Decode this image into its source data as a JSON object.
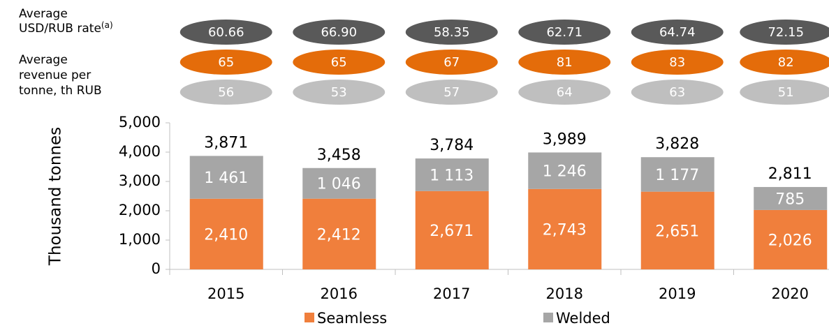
{
  "chart_data": {
    "type": "stacked_bar",
    "categories": [
      "2015",
      "2016",
      "2017",
      "2018",
      "2019",
      "2020"
    ],
    "series": [
      {
        "name": "Seamless",
        "color": "#f07f3c",
        "values": [
          2410,
          2412,
          2671,
          2743,
          2651,
          2026
        ],
        "value_labels": [
          "2,410",
          "2,412",
          "2,671",
          "2,743",
          "2,651",
          "2,026"
        ]
      },
      {
        "name": "Welded",
        "color": "#a6a6a6",
        "values": [
          1461,
          1046,
          1113,
          1246,
          1177,
          785
        ],
        "value_labels": [
          "1 461",
          "1 046",
          "1 113",
          "1 246",
          "1 177",
          "785"
        ]
      }
    ],
    "totals": {
      "values": [
        3871,
        3458,
        3784,
        3989,
        3828,
        2811
      ],
      "value_labels": [
        "3,871",
        "3,458",
        "3,784",
        "3,989",
        "3,828",
        "2,811"
      ]
    },
    "ylabel": "Thousand tonnes",
    "ylim": [
      0,
      5000
    ],
    "yticks": [
      0,
      {
        "value": 1000,
        "label": "1,000"
      },
      {
        "value": 2000,
        "label": "2,000"
      },
      {
        "value": 3000,
        "label": "3,000"
      },
      {
        "value": 4000,
        "label": "4,000"
      },
      {
        "value": 5000,
        "label": "5,000"
      }
    ],
    "rate_row": {
      "label_lines": [
        "Average",
        "USD/RUB rate"
      ],
      "superscript": "(a)",
      "color": "#595959",
      "values": [
        60.66,
        66.9,
        58.35,
        62.71,
        64.74,
        72.15
      ],
      "value_labels": [
        "60.66",
        "66.90",
        "58.35",
        "62.71",
        "64.74",
        "72.15"
      ]
    },
    "revenue_rows": {
      "label_lines": [
        "Average",
        "revenue per",
        "tonne, th RUB"
      ],
      "rows": [
        {
          "name": "Seamless",
          "color": "#e46c0a",
          "values": [
            65,
            65,
            67,
            81,
            83,
            82
          ]
        },
        {
          "name": "Welded",
          "color": "#bfbfbf",
          "values": [
            56,
            53,
            57,
            64,
            63,
            51
          ]
        }
      ]
    }
  }
}
